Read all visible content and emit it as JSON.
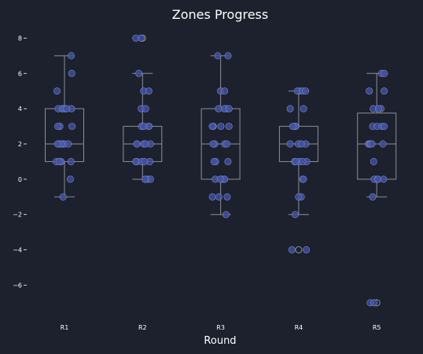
{
  "chart_data": {
    "type": "box",
    "title": "Zones Progress",
    "xlabel": "Round",
    "ylabel": "",
    "ylim": [
      -7.9,
      8.6
    ],
    "yticks": [
      -6,
      -4,
      -2,
      0,
      2,
      4,
      6,
      8
    ],
    "grid": false,
    "colors": {
      "background": "#1c212d",
      "box_edge": "#8c8f96",
      "point_fill": "#3f51a6",
      "point_edge": "#7f8bc2",
      "text": "#ffffff"
    },
    "categories": [
      "R1",
      "R2",
      "R3",
      "R4",
      "R5"
    ],
    "boxes": [
      {
        "category": "R1",
        "whisker_low": -1,
        "q1": 1,
        "median": 2,
        "q3": 4,
        "whisker_high": 7,
        "outliers": []
      },
      {
        "category": "R2",
        "whisker_low": 0,
        "q1": 1,
        "median": 2,
        "q3": 3,
        "whisker_high": 6,
        "outliers": [
          8
        ]
      },
      {
        "category": "R3",
        "whisker_low": -2,
        "q1": 0,
        "median": 2,
        "q3": 4,
        "whisker_high": 7,
        "outliers": []
      },
      {
        "category": "R4",
        "whisker_low": -2,
        "q1": 1,
        "median": 2,
        "q3": 3,
        "whisker_high": 5,
        "outliers": [
          -4
        ]
      },
      {
        "category": "R5",
        "whisker_low": -1,
        "q1": 0,
        "median": 2,
        "q3": 3.75,
        "whisker_high": 6,
        "outliers": [
          -7
        ]
      }
    ],
    "points": [
      {
        "category": "R1",
        "values": [
          7,
          6,
          5,
          4,
          4,
          4,
          4,
          4,
          4,
          3,
          3,
          3,
          2,
          2,
          2,
          2,
          2,
          2,
          1,
          1,
          1,
          1,
          1,
          0,
          -1
        ]
      },
      {
        "category": "R2",
        "values": [
          8,
          8,
          6,
          5,
          5,
          4,
          4,
          3,
          3,
          3,
          3,
          2,
          2,
          2,
          2,
          2,
          1,
          1,
          1,
          1,
          1,
          0,
          0,
          0,
          0
        ]
      },
      {
        "category": "R3",
        "values": [
          7,
          7,
          5,
          5,
          4,
          4,
          4,
          4,
          3,
          3,
          3,
          3,
          2,
          2,
          2,
          2,
          1,
          1,
          1,
          0,
          0,
          0,
          0,
          0,
          -1,
          -1,
          -1,
          -2
        ]
      },
      {
        "category": "R4",
        "values": [
          5,
          5,
          5,
          5,
          4,
          4,
          3,
          3,
          3,
          3,
          2,
          2,
          2,
          2,
          1,
          1,
          1,
          1,
          1,
          0,
          0,
          -1,
          -1,
          -2,
          -4,
          -4
        ]
      },
      {
        "category": "R5",
        "values": [
          6,
          6,
          5,
          5,
          4,
          4,
          4,
          3,
          3,
          3,
          3,
          2,
          2,
          2,
          2,
          2,
          1,
          0,
          0,
          0,
          0,
          0,
          -1,
          -7,
          -7
        ]
      }
    ]
  }
}
